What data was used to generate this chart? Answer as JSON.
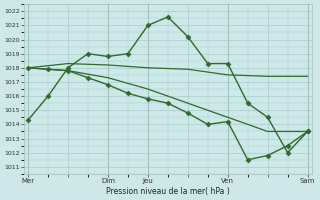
{
  "bg_color": "#cce8e8",
  "grid_color": "#aacccc",
  "line_color": "#2d6a2d",
  "title": "Pression niveau de la mer( hPa )",
  "ylim": [
    1010.5,
    1022.5
  ],
  "yticks": [
    1011,
    1012,
    1013,
    1014,
    1015,
    1016,
    1017,
    1018,
    1019,
    1020,
    1021,
    1022
  ],
  "xtick_labels": [
    "Mer",
    "",
    "Dim",
    "Jeu",
    "",
    "Ven",
    "",
    "Sam"
  ],
  "xtick_positions": [
    0,
    1,
    2,
    3,
    4,
    5,
    6,
    7
  ],
  "vline_positions": [
    0,
    2,
    3,
    5,
    7
  ],
  "xlim": [
    -0.1,
    7.1
  ],
  "series": [
    {
      "x": [
        0,
        0.5,
        1.0,
        1.5,
        2.0,
        2.5,
        3.0,
        3.5,
        4.0,
        4.5,
        5.0,
        5.5,
        6.0,
        6.5,
        7.0
      ],
      "y": [
        1014.3,
        1016.0,
        1018.0,
        1019.0,
        1018.8,
        1019.0,
        1021.0,
        1021.6,
        1020.2,
        1018.3,
        1018.3,
        1015.5,
        1014.5,
        1012.0,
        1013.5
      ],
      "marker": "D",
      "markersize": 2.5,
      "linewidth": 1.0
    },
    {
      "x": [
        0,
        1,
        2,
        3,
        4,
        5,
        6,
        7
      ],
      "y": [
        1018.0,
        1018.3,
        1018.2,
        1018.0,
        1017.9,
        1017.5,
        1017.4,
        1017.4
      ],
      "marker": null,
      "markersize": 0,
      "linewidth": 0.9
    },
    {
      "x": [
        0,
        1,
        2,
        3,
        4,
        5,
        6,
        7
      ],
      "y": [
        1018.0,
        1017.8,
        1017.3,
        1016.5,
        1015.5,
        1014.5,
        1013.5,
        1013.5
      ],
      "marker": null,
      "markersize": 0,
      "linewidth": 0.9
    },
    {
      "x": [
        0,
        0.5,
        1.0,
        1.5,
        2.0,
        2.5,
        3.0,
        3.5,
        4.0,
        4.5,
        5.0,
        5.5,
        6.0,
        6.5,
        7.0
      ],
      "y": [
        1018.0,
        1017.9,
        1017.8,
        1017.3,
        1016.8,
        1016.2,
        1015.8,
        1015.5,
        1014.8,
        1014.0,
        1014.2,
        1011.5,
        1011.8,
        1012.5,
        1013.5
      ],
      "marker": "D",
      "markersize": 2.5,
      "linewidth": 1.0
    }
  ]
}
